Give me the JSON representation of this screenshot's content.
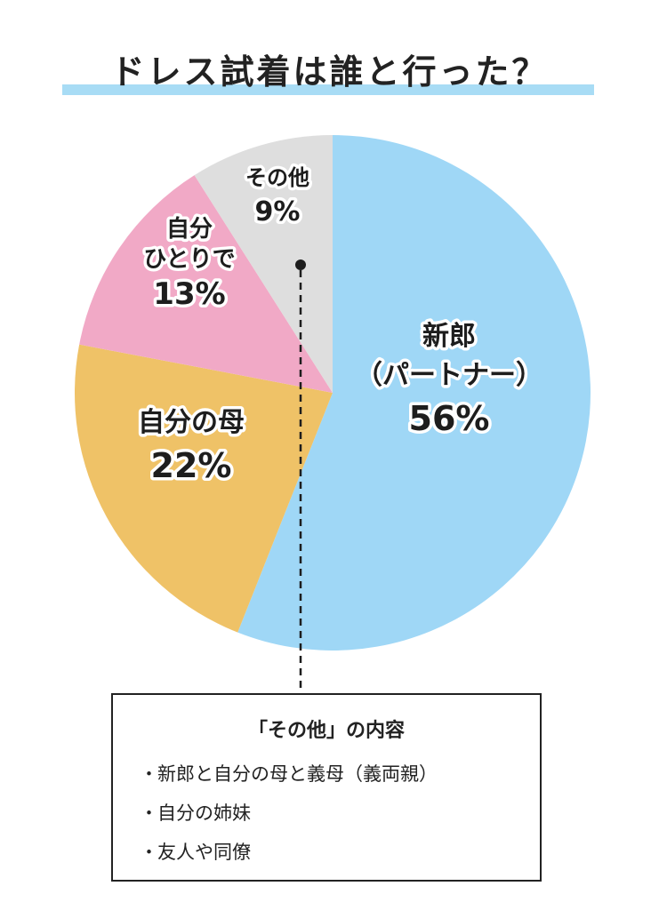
{
  "header": {
    "title": "ドレス試着は誰と行った？"
  },
  "colors": {
    "partner": "#9fd7f6",
    "mother": "#efc267",
    "alone": "#f1a9c6",
    "other": "#dedede",
    "title_bar": "#a8dcf5"
  },
  "chart_data": {
    "type": "pie",
    "title": "ドレス試着は誰と行った？",
    "unit": "%",
    "slices": [
      {
        "lines": [
          "新郎",
          "（パートナー）"
        ],
        "value": 56,
        "pct_label": "56%",
        "color": "#9fd7f6"
      },
      {
        "lines": [
          "自分の母"
        ],
        "value": 22,
        "pct_label": "22%",
        "color": "#efc267"
      },
      {
        "lines": [
          "自分",
          "ひとりで"
        ],
        "value": 13,
        "pct_label": "13%",
        "color": "#f1a9c6"
      },
      {
        "lines": [
          "その他"
        ],
        "value": 9,
        "pct_label": "9%",
        "color": "#dedede"
      }
    ]
  },
  "other_box": {
    "title": "「その他」の内容",
    "bullet": "・",
    "items": [
      "新郎と自分の母と義母（義両親）",
      "自分の姉妹",
      "友人や同僚"
    ]
  }
}
